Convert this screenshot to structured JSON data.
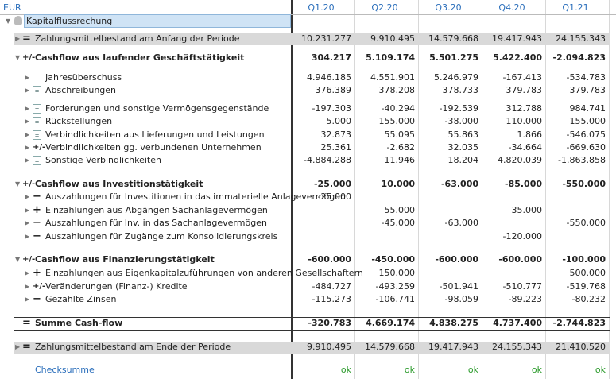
{
  "header": {
    "currency": "EUR",
    "columns": [
      "Q1.20",
      "Q2.20",
      "Q3.20",
      "Q4.20",
      "Q1.21"
    ]
  },
  "title": "Kapitalflussrechung",
  "rows": [
    {
      "style": "band",
      "arrow": "collapsed",
      "icon": "=",
      "label": "Zahlungsmittelbestand am Anfang der Periode",
      "values": [
        "10.231.277",
        "9.910.495",
        "14.579.668",
        "19.417.943",
        "24.155.343"
      ]
    },
    {
      "style": "bold",
      "arrow": "expanded",
      "icon": "+/-",
      "label": "Cashflow aus laufender Geschäftstätigkeit",
      "values": [
        "304.217",
        "5.109.174",
        "5.501.275",
        "5.422.400",
        "-2.094.823"
      ]
    },
    {
      "style": "child",
      "arrow": "collapsed",
      "label": "Jahresüberschuss",
      "values": [
        "4.946.185",
        "4.551.901",
        "5.246.979",
        "-167.413",
        "-534.783"
      ]
    },
    {
      "style": "child",
      "arrow": "collapsed",
      "badge": true,
      "label": "Abschreibungen",
      "values": [
        "376.389",
        "378.208",
        "378.733",
        "379.783",
        "379.783"
      ]
    },
    {
      "style": "child",
      "arrow": "collapsed",
      "badge": true,
      "label": "Forderungen und sonstige Vermögensgegenstände",
      "values": [
        "-197.303",
        "-40.294",
        "-192.539",
        "312.788",
        "984.741"
      ]
    },
    {
      "style": "child",
      "arrow": "collapsed",
      "badge": true,
      "label": "Rückstellungen",
      "values": [
        "5.000",
        "155.000",
        "-38.000",
        "110.000",
        "155.000"
      ]
    },
    {
      "style": "child",
      "arrow": "collapsed",
      "badge": true,
      "label": "Verbindlichkeiten aus Lieferungen und Leistungen",
      "values": [
        "32.873",
        "55.095",
        "55.863",
        "1.866",
        "-546.075"
      ]
    },
    {
      "style": "child",
      "arrow": "collapsed",
      "icon": "+/-",
      "label": "Verbindlichkeiten gg. verbundenen Unternehmen",
      "values": [
        "25.361",
        "-2.682",
        "32.035",
        "-34.664",
        "-669.630"
      ]
    },
    {
      "style": "child",
      "arrow": "collapsed",
      "badge": true,
      "label": "Sonstige Verbindlichkeiten",
      "values": [
        "-4.884.288",
        "11.946",
        "18.204",
        "4.820.039",
        "-1.863.858"
      ]
    },
    {
      "style": "bold",
      "arrow": "expanded",
      "icon": "+/-",
      "label": "Cashflow aus Investitionstätigkeit",
      "values": [
        "-25.000",
        "10.000",
        "-63.000",
        "-85.000",
        "-550.000"
      ]
    },
    {
      "style": "child",
      "arrow": "collapsed",
      "icon": "−",
      "label": "Auszahlungen für Investitionen in das immaterielle Anlagevermögen",
      "values": [
        "-25.000",
        null,
        null,
        null,
        null
      ]
    },
    {
      "style": "child",
      "arrow": "collapsed",
      "icon": "+",
      "label": "Einzahlungen aus Abgängen Sachanlagevermögen",
      "values": [
        null,
        "55.000",
        null,
        "35.000",
        null
      ]
    },
    {
      "style": "child",
      "arrow": "collapsed",
      "icon": "−",
      "label": "Auszahlungen für Inv. in das Sachanlagevermögen",
      "values": [
        null,
        "-45.000",
        "-63.000",
        null,
        "-550.000"
      ]
    },
    {
      "style": "child",
      "arrow": "collapsed",
      "icon": "−",
      "label": "Auszahlungen für Zugänge zum Konsolidierungskreis",
      "values": [
        null,
        null,
        null,
        "-120.000",
        null
      ]
    },
    {
      "style": "bold",
      "arrow": "expanded",
      "icon": "+/-",
      "label": "Cashflow aus Finanzierungstätigkeit",
      "values": [
        "-600.000",
        "-450.000",
        "-600.000",
        "-600.000",
        "-100.000"
      ]
    },
    {
      "style": "child",
      "arrow": "collapsed",
      "icon": "+",
      "label": "Einzahlungen aus Eigenkapitalzuführungen von anderen Gesellschaftern",
      "values": [
        null,
        "150.000",
        null,
        null,
        "500.000"
      ]
    },
    {
      "style": "child",
      "arrow": "collapsed",
      "icon": "+/-",
      "label": "Veränderungen (Finanz-) Kredite",
      "values": [
        "-484.727",
        "-493.259",
        "-501.941",
        "-510.777",
        "-519.768"
      ]
    },
    {
      "style": "child",
      "arrow": "collapsed",
      "icon": "−",
      "label": "Gezahlte Zinsen",
      "values": [
        "-115.273",
        "-106.741",
        "-98.059",
        "-89.223",
        "-80.232"
      ]
    },
    {
      "style": "sum",
      "icon": "=",
      "label": "Summe Cash-flow",
      "values": [
        "-320.783",
        "4.669.174",
        "4.838.275",
        "4.737.400",
        "-2.744.823"
      ]
    },
    {
      "style": "band",
      "arrow": "collapsed",
      "icon": "=",
      "label": "Zahlungsmittelbestand am Ende der Periode",
      "values": [
        "9.910.495",
        "14.579.668",
        "19.417.943",
        "24.155.343",
        "21.410.520"
      ]
    },
    {
      "style": "check",
      "label": "Checksumme",
      "values": [
        "ok",
        "ok",
        "ok",
        "ok",
        "ok"
      ]
    }
  ]
}
